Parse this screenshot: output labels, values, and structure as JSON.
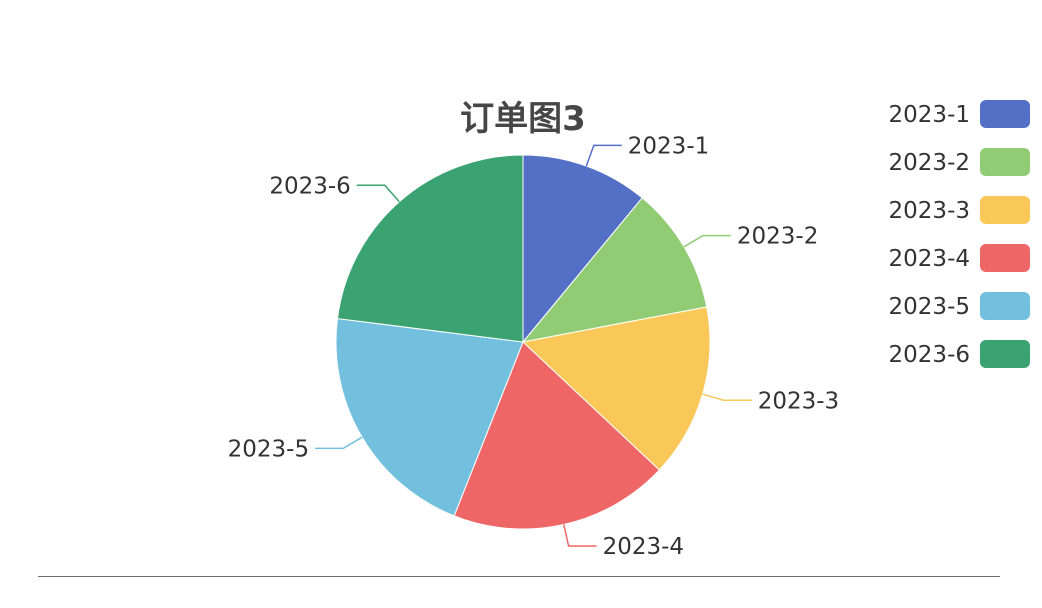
{
  "chart_data": {
    "type": "pie",
    "title": "订单图3",
    "categories": [
      "2023-1",
      "2023-2",
      "2023-3",
      "2023-4",
      "2023-5",
      "2023-6"
    ],
    "values": [
      11,
      11,
      15,
      19,
      21,
      23
    ],
    "colors": [
      "#5470c6",
      "#91cc75",
      "#fac858",
      "#ee6666",
      "#73c0de",
      "#3ba272"
    ],
    "legend": {
      "position": "right",
      "entries": [
        "2023-1",
        "2023-2",
        "2023-3",
        "2023-4",
        "2023-5",
        "2023-6"
      ]
    },
    "start_angle": "12 o'clock",
    "direction": "clockwise"
  }
}
